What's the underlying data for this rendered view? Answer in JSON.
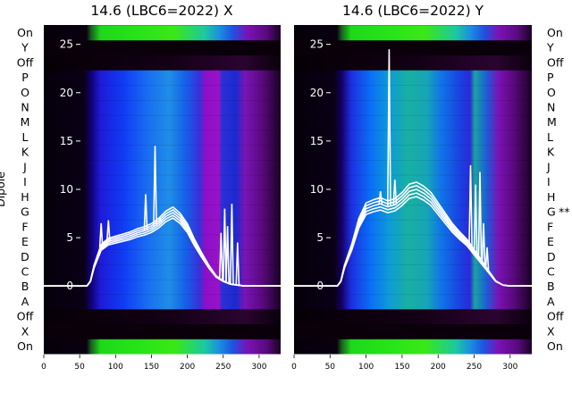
{
  "chart_data": [
    {
      "type": "heatmap",
      "title": "14.6 (LBC6=2022) X",
      "ylabel": "Dipole",
      "xlim": [
        0,
        330
      ],
      "ylim": [
        -7,
        27
      ],
      "x_ticks": [
        "0",
        "50",
        "100",
        "150",
        "200",
        "250",
        "300"
      ],
      "y_ticks": [
        "0",
        "5",
        "10",
        "15",
        "20",
        "25"
      ],
      "rows": [
        "On",
        "X",
        "Off",
        "A",
        "B",
        "C",
        "D",
        "E",
        "F",
        "G",
        "H",
        "I",
        "J",
        "K",
        "L",
        "M",
        "N",
        "O",
        "P",
        "Off",
        "Y",
        "On"
      ],
      "row_side": "left",
      "overlay": {
        "type": "line",
        "color": "#ffffff",
        "x": [
          0,
          60,
          65,
          70,
          80,
          90,
          100,
          110,
          120,
          130,
          140,
          150,
          160,
          170,
          180,
          190,
          200,
          210,
          220,
          230,
          240,
          250,
          260,
          270,
          280,
          290,
          300,
          330
        ],
        "y": [
          0,
          0,
          0.5,
          2,
          4,
          4.6,
          4.8,
          5.0,
          5.2,
          5.5,
          5.7,
          6.0,
          6.5,
          7.2,
          7.6,
          7.0,
          6.0,
          4.5,
          3.2,
          2.0,
          1.0,
          0.5,
          0.2,
          0.1,
          0,
          0,
          0,
          0
        ],
        "spikes": [
          [
            80,
            6.5
          ],
          [
            90,
            6.8
          ],
          [
            142,
            9.5
          ],
          [
            155,
            14.5
          ],
          [
            162,
            7.0
          ],
          [
            247,
            5.5
          ],
          [
            252,
            8.0
          ],
          [
            256,
            6.2
          ],
          [
            262,
            8.5
          ],
          [
            270,
            4.5
          ]
        ]
      }
    },
    {
      "type": "heatmap",
      "title": "14.6 (LBC6=2022) Y",
      "ylabel": "",
      "xlim": [
        0,
        330
      ],
      "ylim": [
        -7,
        27
      ],
      "x_ticks": [
        "0",
        "50",
        "100",
        "150",
        "200",
        "250",
        "300"
      ],
      "y_ticks": [
        "0",
        "5",
        "10",
        "15",
        "20",
        "25"
      ],
      "rows": [
        "On",
        "X",
        "Off",
        "A",
        "B",
        "C",
        "D",
        "E",
        "F",
        "G",
        "H",
        "I",
        "J",
        "K",
        "L",
        "M",
        "N",
        "O",
        "P",
        "Off",
        "Y",
        "On"
      ],
      "row_side": "right",
      "row_marks": {
        "G": "**"
      },
      "overlay": {
        "type": "line",
        "color": "#ffffff",
        "x": [
          0,
          60,
          65,
          70,
          80,
          90,
          100,
          110,
          120,
          130,
          140,
          150,
          160,
          170,
          180,
          190,
          200,
          210,
          220,
          230,
          240,
          250,
          260,
          270,
          280,
          290,
          300,
          330
        ],
        "y": [
          0,
          0,
          0.5,
          2,
          4,
          6.5,
          8,
          8.3,
          8.5,
          8.2,
          8.4,
          9.0,
          9.8,
          10.0,
          9.6,
          9.0,
          8.0,
          7.0,
          6.0,
          5.2,
          4.5,
          3.5,
          2.5,
          1.5,
          0.5,
          0.1,
          0,
          0
        ],
        "spikes": [
          [
            120,
            9.8
          ],
          [
            132,
            24.5
          ],
          [
            140,
            11.0
          ],
          [
            245,
            12.5
          ],
          [
            252,
            10.5
          ],
          [
            258,
            11.8
          ],
          [
            263,
            6.5
          ],
          [
            268,
            4.0
          ]
        ]
      }
    }
  ]
}
